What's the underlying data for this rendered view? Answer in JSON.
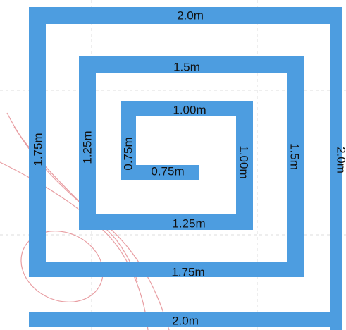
{
  "spiral": {
    "color": "#4d9de0",
    "curve_color": "#e8a0a4",
    "grid_color": "#d9d9d9",
    "labels": {
      "outer_top": "2.0m",
      "outer_left": "1.75m",
      "outer_right": "2.0m",
      "outer_bottom": "2.0m",
      "ring2_top": "1.5m",
      "ring2_left": "1.25m",
      "ring2_right": "1.5m",
      "ring2_bottom": "1.75m",
      "ring3_top": "1.00m",
      "ring3_left": "0.75m",
      "ring3_right": "1.00m",
      "ring3_bottom": "1.25m",
      "inner_tail": "0.75m"
    }
  }
}
